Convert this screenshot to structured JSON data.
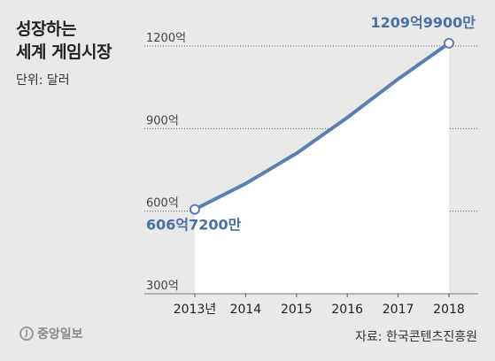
{
  "title_lines": [
    "성장하는",
    "세계 게임시장"
  ],
  "unit": "단위: 달러",
  "source": "자료: 한국콘텐츠진흥원",
  "logo_text": "중앙일보",
  "colors": {
    "line": "#5b7fb0",
    "area": "#ffffff",
    "background": "#e9e9e9",
    "label": "#4a70a5"
  },
  "chart_data": {
    "type": "area",
    "categories": [
      "2013년",
      "2014",
      "2015",
      "2016",
      "2017",
      "2018"
    ],
    "values": [
      606.72,
      700,
      810,
      940,
      1080,
      1209.99
    ],
    "ylim": [
      300,
      1200
    ],
    "yticks": [
      300,
      600,
      900,
      1200
    ],
    "yticklabels": [
      "300억",
      "600억",
      "900억",
      "1200억"
    ],
    "grid": "horizontal-dotted",
    "annotations": [
      {
        "index": 0,
        "text": "606억7200만"
      },
      {
        "index": 5,
        "text": "1209억9900만"
      }
    ]
  }
}
